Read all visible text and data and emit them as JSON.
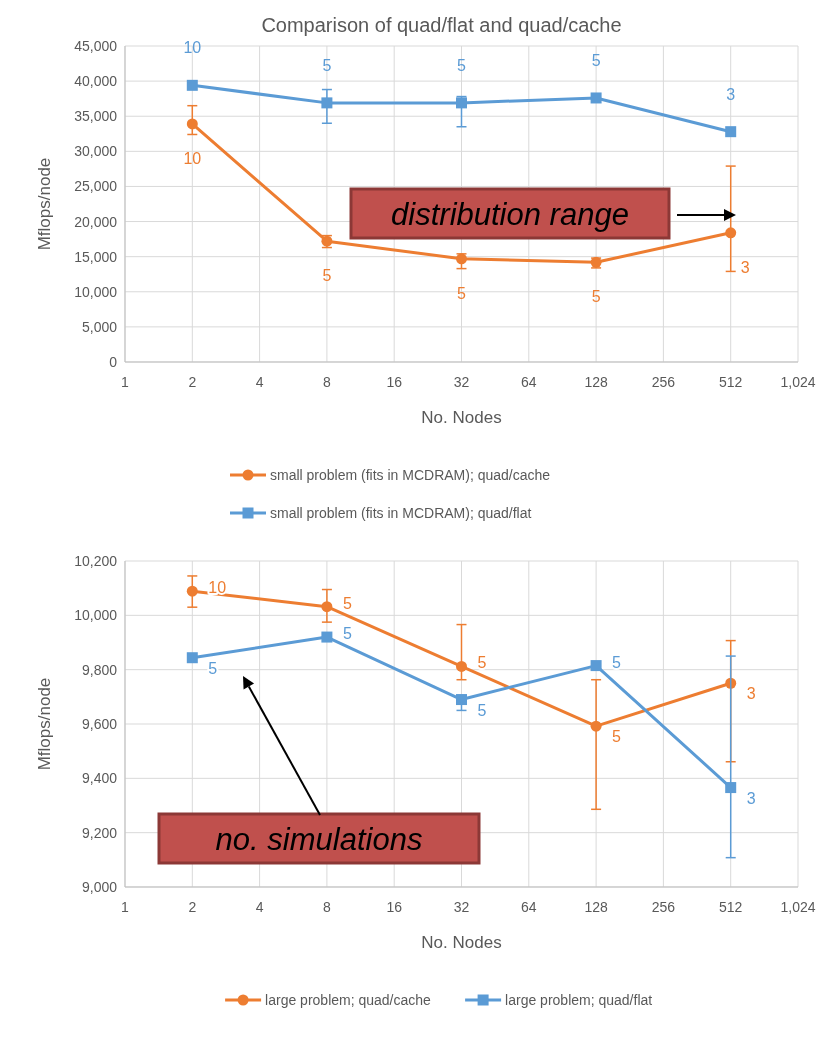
{
  "chart_data": [
    {
      "type": "line",
      "title": "Comparison of quad/flat and quad/cache",
      "xlabel": "No. Nodes",
      "ylabel": "Mflops/node",
      "log": "x",
      "grid": true,
      "legend": "bottom",
      "line_style": "solid",
      "x": [
        2,
        8,
        32,
        128,
        512
      ],
      "xlim": [
        1,
        1024
      ],
      "xticks": [
        1,
        2,
        4,
        8,
        16,
        32,
        64,
        128,
        256,
        512,
        {
          "value": 1024,
          "label": "1,024"
        }
      ],
      "ylim": [
        0,
        45000
      ],
      "yticks": [
        0,
        {
          "value": 5000,
          "label": "5,000"
        },
        {
          "value": 10000,
          "label": "10,000"
        },
        {
          "value": 15000,
          "label": "15,000"
        },
        {
          "value": 20000,
          "label": "20,000"
        },
        {
          "value": 25000,
          "label": "25,000"
        },
        {
          "value": 30000,
          "label": "30,000"
        },
        {
          "value": 35000,
          "label": "35,000"
        },
        {
          "value": 40000,
          "label": "40,000"
        },
        {
          "value": 45000,
          "label": "45,000"
        }
      ],
      "annotations": [
        "distribution range",
        {
          "text": "10",
          "x": 2,
          "y": 33900
        },
        {
          "text": "5",
          "x": 8,
          "y": 17200
        },
        {
          "text": "5",
          "x": 32,
          "y": 14700
        },
        {
          "text": "5",
          "x": 128,
          "y": 14200
        },
        {
          "text": "3",
          "x": 512,
          "y": 18400
        },
        {
          "text": "10",
          "x": 2,
          "y": 39400
        },
        {
          "text": "5",
          "x": 8,
          "y": 36900
        },
        {
          "text": "5",
          "x": 32,
          "y": 36900
        },
        {
          "text": "5",
          "x": 128,
          "y": 37600
        },
        {
          "text": "3",
          "x": 512,
          "y": 32800
        }
      ],
      "series": [
        {
          "name": "small problem (fits in MCDRAM); quad/cache",
          "color": "#ed7d31",
          "marker": "circle",
          "values": [
            33900,
            17200,
            14700,
            14200,
            18400
          ],
          "errors": [
            [
              32400,
              36500
            ],
            [
              16300,
              18000
            ],
            [
              13300,
              15400
            ],
            [
              13400,
              14800
            ],
            [
              12900,
              27900
            ]
          ]
        },
        {
          "name": "small problem (fits in MCDRAM); quad/flat",
          "color": "#5b9bd5",
          "marker": "square",
          "values": [
            39400,
            36900,
            36900,
            37600,
            32800
          ],
          "errors": [
            null,
            [
              34000,
              38800
            ],
            [
              33500,
              37800
            ],
            null,
            null
          ]
        }
      ]
    },
    {
      "type": "line",
      "xlabel": "No. Nodes",
      "ylabel": "Mflops/node",
      "log": "x",
      "grid": true,
      "legend": "bottom",
      "line_style": "solid",
      "x": [
        2,
        8,
        32,
        128,
        512
      ],
      "xlim": [
        1,
        1024
      ],
      "xticks": [
        1,
        2,
        4,
        8,
        16,
        32,
        64,
        128,
        256,
        512,
        {
          "value": 1024,
          "label": "1,024"
        }
      ],
      "ylim": [
        9000,
        10200
      ],
      "yticks": [
        {
          "value": 9000,
          "label": "9,000"
        },
        {
          "value": 9200,
          "label": "9,200"
        },
        {
          "value": 9400,
          "label": "9,400"
        },
        {
          "value": 9600,
          "label": "9,600"
        },
        {
          "value": 9800,
          "label": "9,800"
        },
        {
          "value": 10000,
          "label": "10,000"
        },
        {
          "value": 10200,
          "label": "10,200"
        }
      ],
      "annotations": [
        "no. simulations",
        {
          "text": "10",
          "x": 2,
          "y": 10089
        },
        {
          "text": "5",
          "x": 8,
          "y": 10032
        },
        {
          "text": "5",
          "x": 32,
          "y": 9812
        },
        {
          "text": "5",
          "x": 128,
          "y": 9592
        },
        {
          "text": "3",
          "x": 512,
          "y": 9750
        },
        {
          "text": "5",
          "x": 2,
          "y": 9844
        },
        {
          "text": "5",
          "x": 8,
          "y": 9920
        },
        {
          "text": "5",
          "x": 32,
          "y": 9690
        },
        {
          "text": "5",
          "x": 128,
          "y": 9815
        },
        {
          "text": "3",
          "x": 512,
          "y": 9366
        }
      ],
      "series": [
        {
          "name": "large problem; quad/cache",
          "color": "#ed7d31",
          "marker": "circle",
          "values": [
            10089,
            10032,
            9812,
            9592,
            9750
          ],
          "errors": [
            [
              10030,
              10145
            ],
            [
              9975,
              10095
            ],
            [
              9763,
              9966
            ],
            [
              9286,
              9763
            ],
            [
              9461,
              9907
            ]
          ]
        },
        {
          "name": "large problem; quad/flat",
          "color": "#5b9bd5",
          "marker": "square",
          "values": [
            9844,
            9920,
            9690,
            9815,
            9366
          ],
          "errors": [
            null,
            null,
            [
              9650,
              9690
            ],
            null,
            [
              9108,
              9850
            ]
          ]
        }
      ]
    }
  ]
}
